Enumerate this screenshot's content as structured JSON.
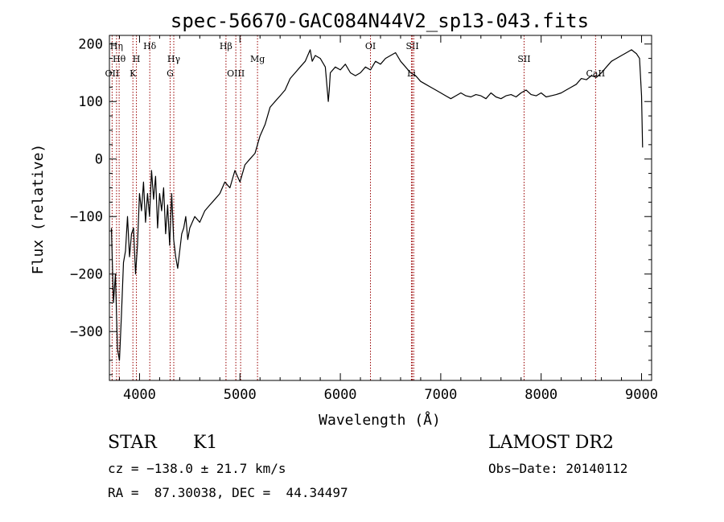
{
  "chart_data": {
    "type": "line",
    "title": "spec-56670-GAC084N44V2_sp13-043.fits",
    "xlabel": "Wavelength (Å)",
    "ylabel": "Flux (relative)",
    "xlim": [
      3700,
      9100
    ],
    "ylim": [
      -385,
      215
    ],
    "xticks": [
      4000,
      5000,
      6000,
      7000,
      8000,
      9000
    ],
    "yticks": [
      -300,
      -200,
      -100,
      0,
      100,
      200
    ],
    "grid": false,
    "line_color": "#000000",
    "marker_color": "#990000",
    "series": [
      {
        "x": [
          3720,
          3740,
          3760,
          3780,
          3800,
          3820,
          3840,
          3860,
          3880,
          3900,
          3920,
          3940,
          3960,
          3980,
          4000,
          4020,
          4040,
          4060,
          4080,
          4100,
          4120,
          4140,
          4160,
          4180,
          4200,
          4220,
          4240,
          4260,
          4280,
          4300,
          4320,
          4340,
          4360,
          4380,
          4400,
          4420,
          4440,
          4460,
          4480,
          4500,
          4550,
          4600,
          4650,
          4700,
          4750,
          4800,
          4850,
          4900,
          4950,
          5000,
          5050,
          5100,
          5150,
          5200,
          5250,
          5300,
          5350,
          5400,
          5450,
          5500,
          5550,
          5600,
          5650,
          5700,
          5720,
          5750,
          5800,
          5850,
          5880,
          5890,
          5900,
          5950,
          6000,
          6050,
          6100,
          6150,
          6200,
          6250,
          6300,
          6350,
          6400,
          6450,
          6500,
          6550,
          6600,
          6650,
          6700,
          6750,
          6800,
          6850,
          6900,
          6950,
          7000,
          7050,
          7100,
          7150,
          7200,
          7250,
          7300,
          7350,
          7400,
          7450,
          7500,
          7550,
          7600,
          7650,
          7700,
          7750,
          7800,
          7850,
          7900,
          7950,
          8000,
          8050,
          8100,
          8150,
          8200,
          8250,
          8300,
          8350,
          8400,
          8450,
          8500,
          8550,
          8600,
          8650,
          8700,
          8750,
          8800,
          8850,
          8900,
          8950,
          8980,
          9000,
          9010
        ],
        "values": [
          -120,
          -250,
          -200,
          -330,
          -350,
          -270,
          -180,
          -160,
          -100,
          -170,
          -130,
          -120,
          -200,
          -150,
          -60,
          -90,
          -40,
          -110,
          -60,
          -100,
          -20,
          -70,
          -30,
          -120,
          -60,
          -90,
          -50,
          -130,
          -80,
          -150,
          -60,
          -140,
          -170,
          -190,
          -160,
          -130,
          -120,
          -100,
          -140,
          -120,
          -100,
          -110,
          -90,
          -80,
          -70,
          -60,
          -40,
          -50,
          -20,
          -40,
          -10,
          0,
          10,
          40,
          60,
          90,
          100,
          110,
          120,
          140,
          150,
          160,
          170,
          190,
          170,
          180,
          175,
          160,
          100,
          120,
          150,
          160,
          155,
          165,
          150,
          145,
          150,
          160,
          155,
          170,
          165,
          175,
          180,
          185,
          170,
          160,
          150,
          145,
          135,
          130,
          125,
          120,
          115,
          110,
          105,
          110,
          115,
          110,
          108,
          112,
          110,
          105,
          115,
          108,
          105,
          110,
          112,
          108,
          115,
          120,
          112,
          110,
          115,
          108,
          110,
          112,
          115,
          120,
          125,
          130,
          140,
          138,
          145,
          142,
          150,
          160,
          170,
          175,
          180,
          185,
          190,
          183,
          175,
          110,
          20
        ]
      }
    ],
    "line_markers": [
      {
        "x": 3727,
        "label": "OII",
        "row": 3
      },
      {
        "x": 3771,
        "label": "Hη",
        "row": 1
      },
      {
        "x": 3797,
        "label": "Hθ",
        "row": 2
      },
      {
        "x": 3934,
        "label": "K",
        "row": 3
      },
      {
        "x": 3969,
        "label": "H",
        "row": 2
      },
      {
        "x": 4102,
        "label": "Hδ",
        "row": 1
      },
      {
        "x": 4305,
        "label": "G",
        "row": 3
      },
      {
        "x": 4341,
        "label": "Hγ",
        "row": 2
      },
      {
        "x": 4861,
        "label": "Hβ",
        "row": 1
      },
      {
        "x": 4959,
        "label": "OIII",
        "row": 3
      },
      {
        "x": 5007,
        "label": "",
        "row": 0
      },
      {
        "x": 5175,
        "label": "Mg",
        "row": 2
      },
      {
        "x": 6300,
        "label": "OI",
        "row": 1
      },
      {
        "x": 6708,
        "label": "Li",
        "row": 3
      },
      {
        "x": 6717,
        "label": "SII",
        "row": 1
      },
      {
        "x": 6731,
        "label": "",
        "row": 0
      },
      {
        "x": 7830,
        "label": "SII",
        "row": 2
      },
      {
        "x": 8542,
        "label": "CaII",
        "row": 3
      }
    ]
  },
  "info": {
    "object_type": "STAR",
    "subclass": "K1",
    "survey": "LAMOST DR2",
    "cz": "cz = −138.0 ± 21.7 km/s",
    "obs_date": "Obs−Date: 20140112",
    "coords": "RA =  87.30038, DEC =  44.34497"
  }
}
